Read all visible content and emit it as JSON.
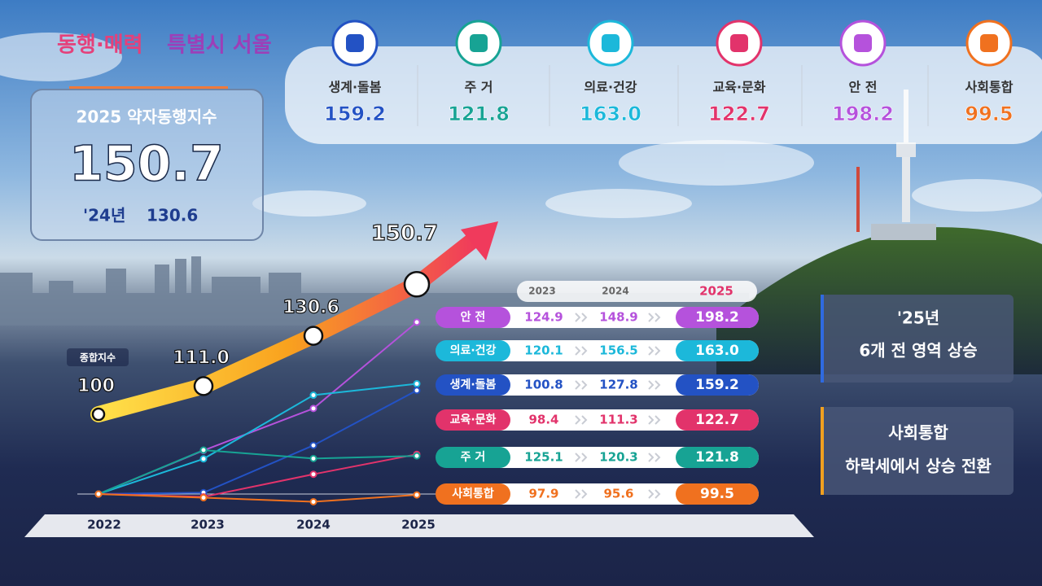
{
  "logo": {
    "part1": "동행·매력",
    "part2": "특별시 서울"
  },
  "summary": {
    "title": "2025 약자동행지수",
    "prev_label": "'24년"
  },
  "notes": [
    {
      "line1": "'25년",
      "line2": "6개 전 영역 상승"
    },
    {
      "line1": "사회통합",
      "line2": "하락세에서 상승 전환"
    }
  ],
  "chart_data": {
    "type": "line",
    "categories": [
      "2022",
      "2023",
      "2024",
      "2025"
    ],
    "series": [
      {
        "name": "종합지수",
        "color": "#f5a623",
        "values": [
          100,
          111.0,
          130.6,
          150.7
        ],
        "value_labels": [
          "100",
          "111.0",
          "130.6",
          "150.7"
        ]
      },
      {
        "name": "안 전",
        "color": "#b552dc",
        "values": [
          100,
          124.9,
          148.9,
          198.2
        ],
        "value_labels": [
          null,
          "124.9",
          "148.9",
          "198.2"
        ]
      },
      {
        "name": "의료·건강",
        "color": "#1cb8da",
        "values": [
          100,
          120.1,
          156.5,
          163.0
        ],
        "value_labels": [
          null,
          "120.1",
          "156.5",
          "163.0"
        ]
      },
      {
        "name": "생계·돌봄",
        "color": "#2352c4",
        "values": [
          100,
          100.8,
          127.8,
          159.2
        ],
        "value_labels": [
          null,
          "100.8",
          "127.8",
          "159.2"
        ]
      },
      {
        "name": "교육·문화",
        "color": "#e2336b",
        "values": [
          100,
          98.4,
          111.3,
          122.7
        ],
        "value_labels": [
          null,
          "98.4",
          "111.3",
          "122.7"
        ]
      },
      {
        "name": "주 거",
        "color": "#17a394",
        "values": [
          100,
          125.1,
          120.3,
          121.8
        ],
        "value_labels": [
          null,
          "125.1",
          "120.3",
          "121.8"
        ]
      },
      {
        "name": "사회통합",
        "color": "#f0711f",
        "values": [
          100,
          97.9,
          95.6,
          99.5
        ],
        "value_labels": [
          null,
          "97.9",
          "95.6",
          "99.5"
        ]
      }
    ]
  }
}
